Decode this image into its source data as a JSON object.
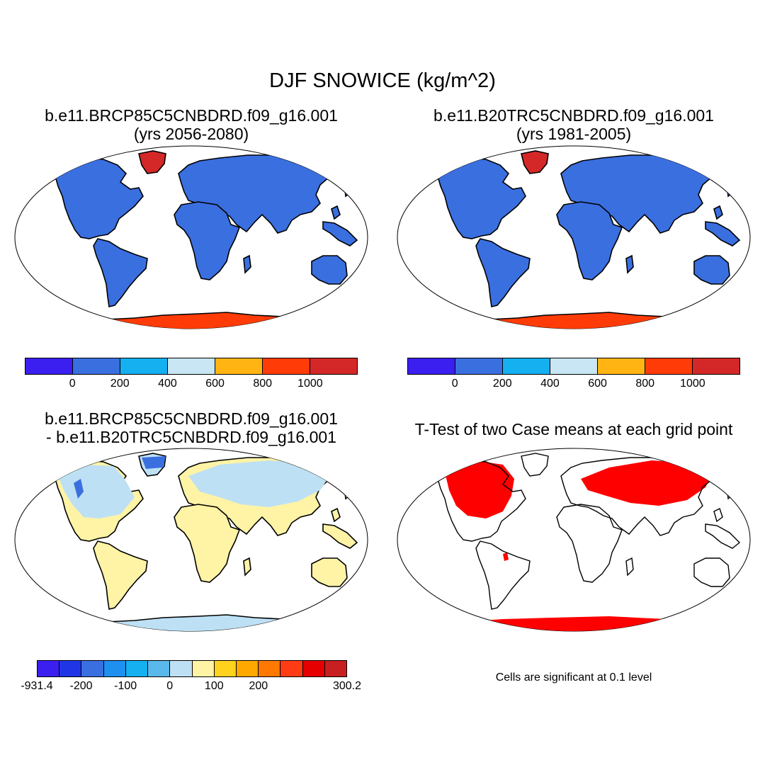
{
  "title": "DJF SNOWICE (kg/m^2)",
  "panels": {
    "top_left": {
      "title_line1": "b.e11.BRCP85C5CNBDRD.f09_g16.001",
      "title_line2": "(yrs 2056-2080)"
    },
    "top_right": {
      "title_line1": "b.e11.B20TRC5CNBDRD.f09_g16.001",
      "title_line2": "(yrs 1981-2005)"
    },
    "bottom_left": {
      "title_line1": "b.e11.BRCP85C5CNBDRD.f09_g16.001",
      "title_line2": "- b.e11.B20TRC5CNBDRD.f09_g16.001"
    },
    "bottom_right": {
      "title_line1": "T-Test of two Case means at each grid point",
      "note": "Cells are significant at 0.1 level"
    }
  },
  "colorbar_abs": {
    "colors": [
      "#3a1ff0",
      "#3a6fe0",
      "#14b0f0",
      "#c8e6f4",
      "#ffb414",
      "#ff3c08",
      "#d42828"
    ],
    "labels": [
      "0",
      "200",
      "400",
      "600",
      "800",
      "1000"
    ]
  },
  "colorbar_diff": {
    "colors": [
      "#3a1ff0",
      "#2036e6",
      "#3a6fe0",
      "#1e90f0",
      "#14b0f0",
      "#5ab8ea",
      "#bde0f4",
      "#fff3a6",
      "#ffd21e",
      "#ffa800",
      "#ff7800",
      "#ff3c14",
      "#e60000",
      "#c82020"
    ],
    "labels": [
      "-931.4",
      "-200",
      "-100",
      "0",
      "100",
      "200",
      "300.2"
    ]
  },
  "map_colors": {
    "land_abs": "#3a6fe0",
    "greenland_abs": "#d42828",
    "antarctica_abs": "#ff3c08",
    "land_diff": "#fff3a6",
    "snow_loss_diff": "#bde0f4",
    "strong_loss_diff": "#3a6fe0",
    "significant": "#ff0000",
    "coastline": "#000000"
  }
}
